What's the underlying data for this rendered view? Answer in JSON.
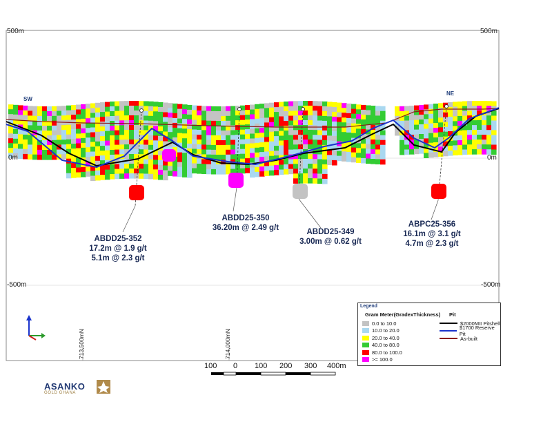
{
  "elevations": {
    "top_left": "500m",
    "top_right": "500m",
    "mid_left": "0m",
    "mid_right": "0m",
    "bottom_left": "-500m",
    "bottom_right": "-500m"
  },
  "directions": {
    "left": "SW",
    "right": "NE"
  },
  "drillholes": [
    {
      "id": "ABDD25-352",
      "lines": [
        "17.2m @ 1.9 g/t",
        "5.1m @ 2.3 g/t"
      ]
    },
    {
      "id": "ABDD25-350",
      "lines": [
        "36.20m @ 2.49 g/t"
      ]
    },
    {
      "id": "ABDD25-349",
      "lines": [
        "3.00m @ 0.62 g/t"
      ]
    },
    {
      "id": "ABPC25-356",
      "lines": [
        "16.1m @ 3.1 g/t",
        "4.7m @ 2.3 g/t"
      ]
    }
  ],
  "northings": [
    "713,500mN",
    "714,000mN"
  ],
  "legend": {
    "title": "Legend",
    "grade_header": "Gram Meter(GradexThickness)",
    "pit_header": "Pit",
    "grades": [
      {
        "label": "0.0 to 10.0",
        "color": "#c3c3c3"
      },
      {
        "label": "10.0 to 20.0",
        "color": "#a9d8f0"
      },
      {
        "label": "20.0 to 40.0",
        "color": "#ffff00"
      },
      {
        "label": "40.0 to 80.0",
        "color": "#33cc33"
      },
      {
        "label": "80.0 to 100.0",
        "color": "#ff0000"
      },
      {
        "label": ">= 100.0",
        "color": "#ff00ff"
      }
    ],
    "pits": [
      {
        "label": "$2000MII Pitshell",
        "color": "#000000"
      },
      {
        "label": "$1700 Reserve Pit",
        "color": "#1a33cc"
      },
      {
        "label": "As-built",
        "color": "#8b1a1a"
      }
    ]
  },
  "scale_bar": {
    "labels": [
      "100",
      "0",
      "100",
      "200",
      "300",
      "400m"
    ]
  },
  "logo": {
    "name": "ASANKO",
    "sub": "GOLD GHANA"
  }
}
